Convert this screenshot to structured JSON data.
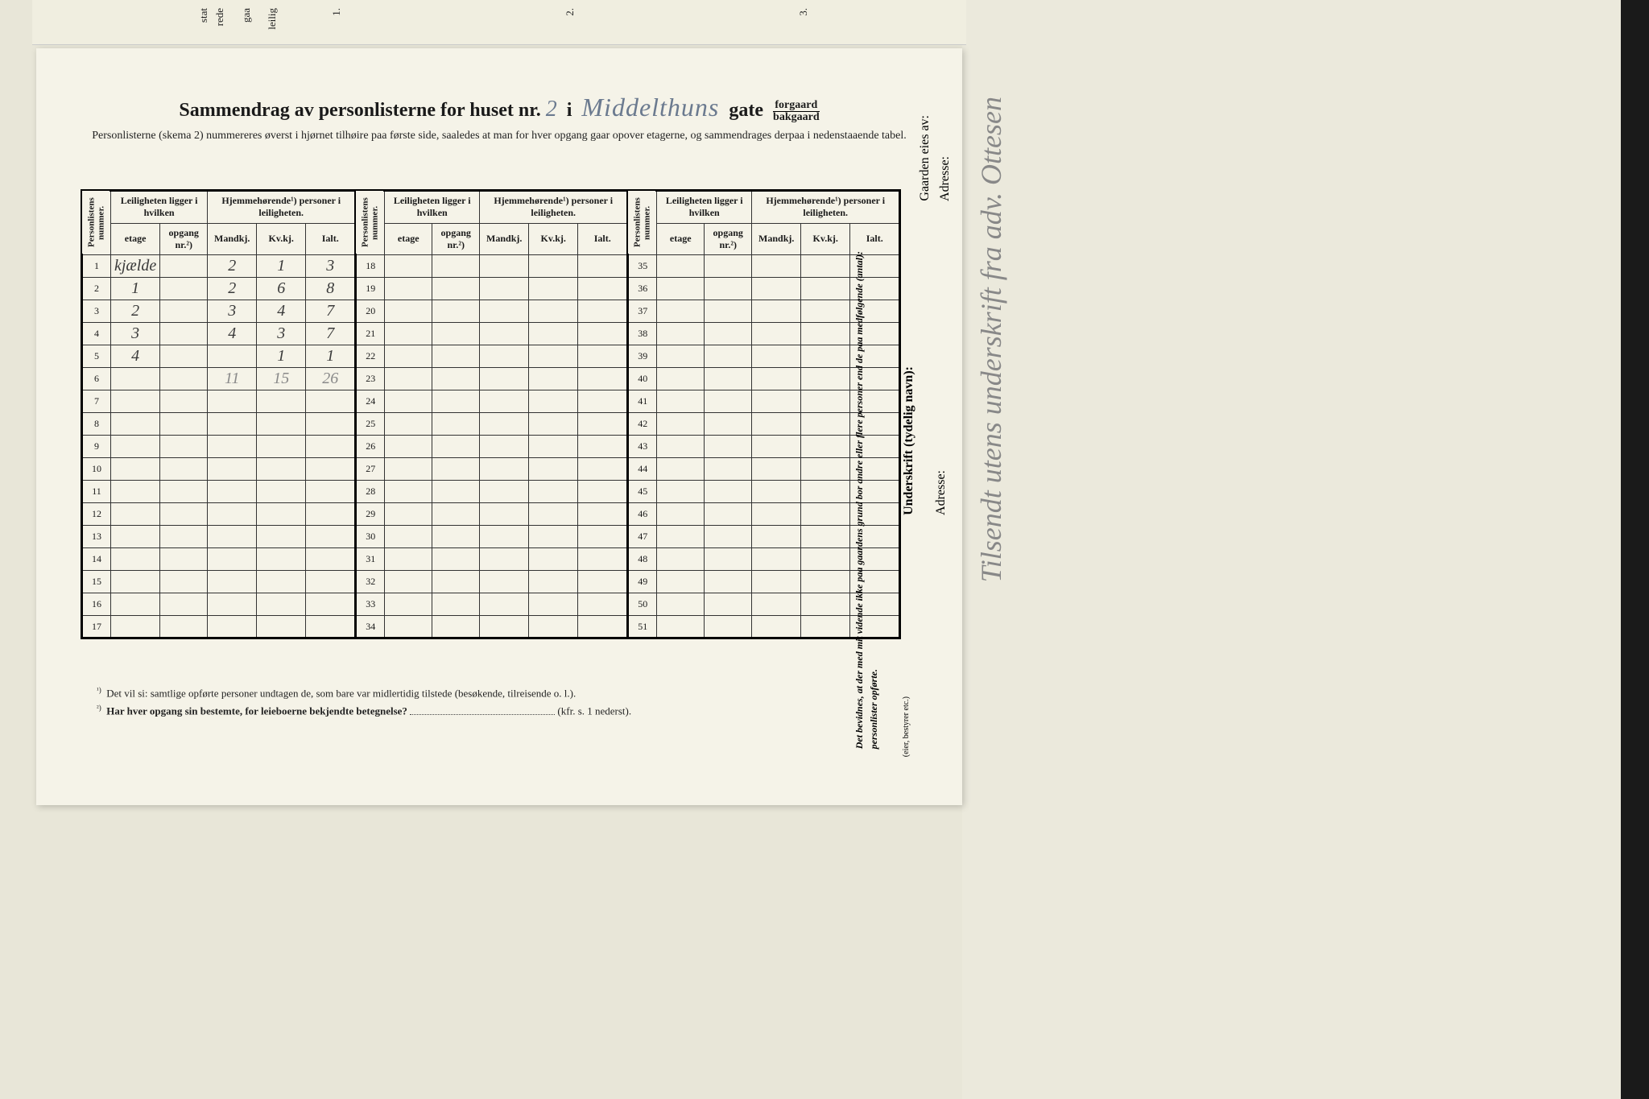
{
  "top_labels": {
    "l1": "stat",
    "l2": "rede",
    "l3": "gaa",
    "l4": "leilig",
    "n1": "1.",
    "n2": "2.",
    "n3": "3."
  },
  "title": {
    "prefix": "Sammendrag av personlisterne for huset nr.",
    "house_nr": "2",
    "mid": "i",
    "street": "Middelthuns",
    "suffix": "gate",
    "fraction_top": "forgaard",
    "fraction_bot": "bakgaard"
  },
  "subtitle": "Personlisterne (skema 2) nummereres øverst i hjørnet tilhøire paa første side, saaledes at man for hver opgang gaar opover etagerne, og sammendrages derpaa i nedenstaaende tabel.",
  "headers": {
    "personlistens": "Personlistens nummer.",
    "leiligheten": "Leiligheten ligger i hvilken",
    "hjemme": "Hjemmehørende¹) personer i leiligheten.",
    "etage": "etage",
    "opgang": "opgang nr.²)",
    "mandkj": "Mandkj.",
    "kvkj": "Kv.kj.",
    "ialt": "Ialt."
  },
  "rows": [
    {
      "n": "1",
      "etage": "kjælde",
      "m": "2",
      "k": "1",
      "i": "3"
    },
    {
      "n": "2",
      "etage": "1",
      "m": "2",
      "k": "6",
      "i": "8"
    },
    {
      "n": "3",
      "etage": "2",
      "m": "3",
      "k": "4",
      "i": "7"
    },
    {
      "n": "4",
      "etage": "3",
      "m": "4",
      "k": "3",
      "i": "7"
    },
    {
      "n": "5",
      "etage": "4",
      "m": "",
      "k": "1",
      "i": "1"
    }
  ],
  "totals": {
    "m": "11",
    "k": "15",
    "i": "26"
  },
  "col1_rest": [
    "6",
    "7",
    "8",
    "9",
    "10",
    "11",
    "12",
    "13",
    "14",
    "15",
    "16",
    "17"
  ],
  "col2_nums": [
    "18",
    "19",
    "20",
    "21",
    "22",
    "23",
    "24",
    "25",
    "26",
    "27",
    "28",
    "29",
    "30",
    "31",
    "32",
    "33",
    "34"
  ],
  "col3_nums": [
    "35",
    "36",
    "37",
    "38",
    "39",
    "40",
    "41",
    "42",
    "43",
    "44",
    "45",
    "46",
    "47",
    "48",
    "49",
    "50",
    "51"
  ],
  "footnotes": {
    "f1_sup": "¹)",
    "f1": "Det vil si: samtlige opførte personer undtagen de, som bare var midlertidig tilstede (besøkende, tilreisende o. l.).",
    "f2_sup": "²)",
    "f2_bold": "Har hver opgang sin bestemte, for leieboerne bekjendte betegnelse?",
    "f2_end": "(kfr. s. 1 nederst)."
  },
  "sidebar": {
    "attest": "Det bevidnes, at der med mit vidende ikke paa gaardens grund bor andre eller flere personer end de paa medfølgende (antal):",
    "personlister": "personlister opførte.",
    "underskrift": "Underskrift (tydelig navn):",
    "eier": "(eier, bestyrer etc.)",
    "adresse": "Adresse:",
    "gaarden": "Gaarden eies av:"
  },
  "margin_note": "Tilsendt utens underskrift fra adv. Ottesen"
}
